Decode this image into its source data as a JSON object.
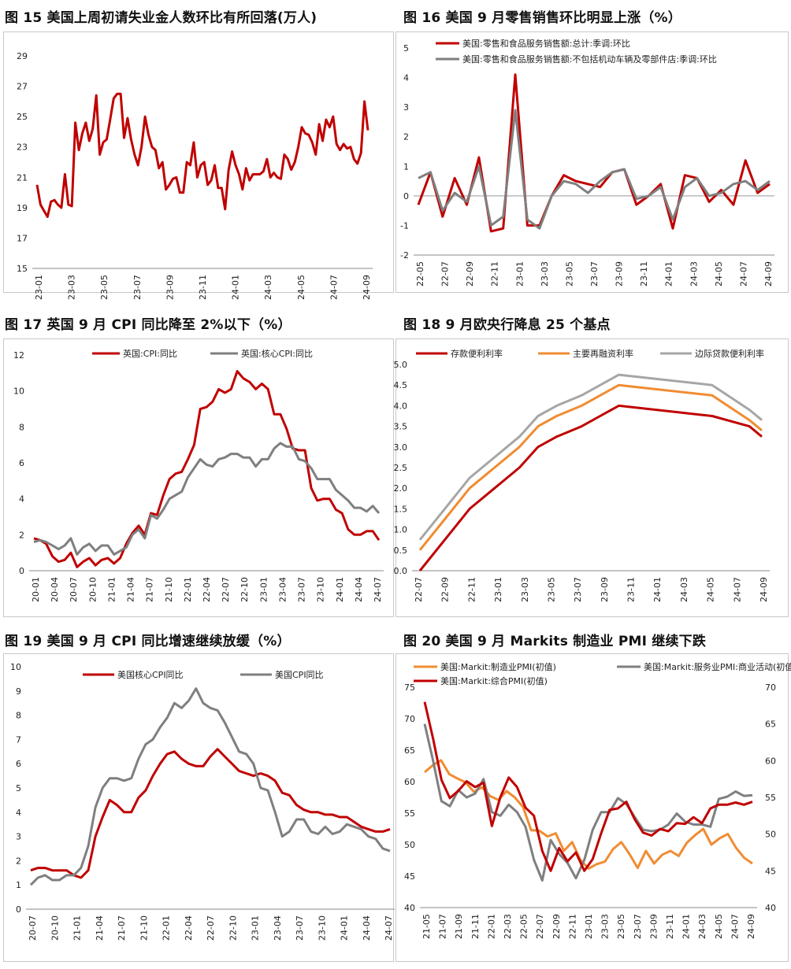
{
  "colors": {
    "red": "#c00000",
    "gray": "#7f7f7f",
    "orange": "#f08c32",
    "lightgray": "#a6a6a6"
  },
  "chart_data": [
    {
      "id": "c15",
      "title": "图 15 美国上周初请失业金人数环比有所回落(万人)",
      "type": "line",
      "ylim": [
        15,
        29
      ],
      "yticks": [
        "15",
        "17",
        "19",
        "21",
        "23",
        "25",
        "27",
        "29"
      ],
      "xticks": [
        "23-01",
        "23-03",
        "23-05",
        "23-07",
        "23-09",
        "23-11",
        "24-01",
        "24-03",
        "24-05",
        "24-07",
        "24-09"
      ],
      "series": [
        {
          "name": "初请失业金人数",
          "color": "#c00000",
          "values": [
            20.5,
            19.2,
            18.8,
            18.4,
            19.4,
            19.5,
            19.2,
            19.0,
            21.2,
            19.2,
            19.1,
            24.6,
            22.8,
            23.9,
            24.6,
            23.4,
            24.2,
            26.4,
            22.5,
            23.3,
            23.5,
            24.8,
            26.2,
            26.5,
            26.5,
            23.6,
            24.9,
            23.5,
            22.5,
            21.8,
            23.0,
            25.0,
            23.8,
            23.0,
            22.8,
            21.6,
            22.0,
            20.2,
            20.5,
            20.9,
            21.0,
            20.0,
            20.0,
            22.0,
            21.8,
            23.3,
            21.0,
            21.8,
            22.0,
            20.5,
            20.8,
            21.8,
            20.3,
            20.3,
            18.9,
            21.5,
            22.7,
            21.8,
            21.2,
            20.2,
            21.6,
            20.8,
            21.2,
            21.2,
            21.2,
            21.4,
            22.2,
            21.0,
            21.3,
            21.0,
            20.9,
            22.5,
            22.2,
            21.5,
            22.0,
            23.0,
            24.3,
            23.9,
            23.8,
            23.3,
            22.5,
            24.5,
            23.4,
            24.8,
            24.3,
            25.0,
            23.2,
            22.8,
            23.2,
            22.9,
            23.0,
            22.2,
            21.9,
            22.6,
            26.0,
            24.1
          ]
        }
      ]
    },
    {
      "id": "c16",
      "title": "图 16 美国 9 月零售销售环比明显上涨（%）",
      "type": "line",
      "ylim": [
        -2,
        5
      ],
      "yticks": [
        "-2",
        "-1",
        "0",
        "1",
        "2",
        "3",
        "4",
        "5"
      ],
      "xticks": [
        "22-05",
        "22-07",
        "22-09",
        "22-11",
        "23-01",
        "23-03",
        "23-05",
        "23-07",
        "23-09",
        "23-11",
        "24-01",
        "24-03",
        "24-05",
        "24-07",
        "24-09"
      ],
      "series": [
        {
          "name": "美国:零售和食品服务销售额:总计:季调:环比",
          "color": "#c00000",
          "values": [
            -0.3,
            0.8,
            -0.7,
            0.6,
            -0.3,
            1.3,
            -1.2,
            -1.1,
            4.1,
            -1.0,
            -1.0,
            0.0,
            0.7,
            0.5,
            0.4,
            0.3,
            0.8,
            0.9,
            -0.3,
            0.0,
            0.4,
            -1.1,
            0.7,
            0.6,
            -0.2,
            0.2,
            -0.3,
            1.2,
            0.1,
            0.4
          ]
        },
        {
          "name": "美国:零售和食品服务销售额:不包括机动车辆及零部件店:季调:环比",
          "color": "#7f7f7f",
          "values": [
            0.6,
            0.8,
            -0.5,
            0.1,
            -0.2,
            1.0,
            -1.0,
            -0.7,
            2.9,
            -0.8,
            -1.1,
            0.0,
            0.5,
            0.4,
            0.1,
            0.5,
            0.8,
            0.9,
            -0.1,
            0.0,
            0.3,
            -0.8,
            0.3,
            0.6,
            0.0,
            0.1,
            0.4,
            0.5,
            0.2,
            0.5
          ]
        }
      ]
    },
    {
      "id": "c17",
      "title": "图 17 英国 9 月 CPI 同比降至 2%以下（%）",
      "type": "line",
      "ylim": [
        0,
        12
      ],
      "yticks": [
        "0",
        "2",
        "4",
        "6",
        "8",
        "10",
        "12"
      ],
      "xticks": [
        "20-01",
        "20-04",
        "20-07",
        "20-10",
        "21-01",
        "21-04",
        "21-07",
        "21-10",
        "22-01",
        "22-04",
        "22-07",
        "22-10",
        "23-01",
        "23-04",
        "23-07",
        "23-10",
        "24-01",
        "24-04",
        "24-07"
      ],
      "series": [
        {
          "name": "英国:CPI:同比",
          "color": "#c00000",
          "values": [
            1.8,
            1.7,
            1.5,
            0.8,
            0.5,
            0.6,
            1.0,
            0.2,
            0.5,
            0.7,
            0.3,
            0.6,
            0.7,
            0.4,
            0.7,
            1.5,
            2.1,
            2.5,
            2.0,
            3.2,
            3.1,
            4.2,
            5.1,
            5.4,
            5.5,
            6.2,
            7.0,
            9.0,
            9.1,
            9.4,
            10.1,
            9.9,
            10.1,
            11.1,
            10.7,
            10.5,
            10.1,
            10.4,
            10.1,
            8.7,
            8.7,
            7.9,
            6.8,
            6.7,
            6.7,
            4.6,
            3.9,
            4.0,
            4.0,
            3.4,
            3.2,
            2.3,
            2.0,
            2.0,
            2.2,
            2.2,
            1.7
          ]
        },
        {
          "name": "英国:核心CPI:同比",
          "color": "#7f7f7f",
          "values": [
            1.6,
            1.7,
            1.6,
            1.4,
            1.2,
            1.4,
            1.8,
            0.9,
            1.3,
            1.5,
            1.1,
            1.4,
            1.4,
            0.9,
            1.1,
            1.3,
            2.0,
            2.3,
            1.8,
            3.1,
            2.9,
            3.4,
            4.0,
            4.2,
            4.4,
            5.2,
            5.7,
            6.2,
            5.9,
            5.8,
            6.2,
            6.3,
            6.5,
            6.5,
            6.3,
            6.3,
            5.8,
            6.2,
            6.2,
            6.8,
            7.1,
            6.9,
            6.9,
            6.2,
            6.1,
            5.7,
            5.1,
            5.1,
            5.1,
            4.5,
            4.2,
            3.9,
            3.5,
            3.5,
            3.3,
            3.6,
            3.2
          ]
        }
      ]
    },
    {
      "id": "c18",
      "title": "图 18 9 月欧央行降息 25 个基点",
      "type": "line",
      "ylim": [
        0,
        5
      ],
      "yticks": [
        "0.0",
        "0.5",
        "1.0",
        "1.5",
        "2.0",
        "2.5",
        "3.0",
        "3.5",
        "4.0",
        "4.5",
        "5.0"
      ],
      "xticks": [
        "22-07",
        "22-09",
        "22-11",
        "23-01",
        "23-03",
        "23-05",
        "23-07",
        "23-09",
        "23-11",
        "24-01",
        "24-03",
        "24-05",
        "24-07",
        "24-09"
      ],
      "series": [
        {
          "name": "存款便利利率",
          "color": "#c00000",
          "values": [
            0.0,
            0.75,
            1.5,
            2.0,
            2.5,
            3.0,
            3.25,
            3.5,
            3.75,
            4.0,
            3.75,
            3.5,
            3.25
          ]
        },
        {
          "name": "主要再融资利率",
          "color": "#f08c32",
          "values": [
            0.5,
            1.25,
            2.0,
            2.5,
            3.0,
            3.5,
            3.75,
            4.0,
            4.25,
            4.5,
            4.25,
            3.65,
            3.4
          ]
        },
        {
          "name": "边际贷款便利利率",
          "color": "#a6a6a6",
          "values": [
            0.75,
            1.5,
            2.25,
            2.75,
            3.25,
            3.75,
            4.0,
            4.25,
            4.5,
            4.75,
            4.5,
            3.9,
            3.65
          ]
        }
      ],
      "x_index": [
        0,
        2,
        4,
        6,
        8,
        9.5,
        11,
        13,
        14.5,
        16,
        23.5,
        26.5,
        27.5
      ]
    },
    {
      "id": "c19",
      "title": "图 19 美国 9 月 CPI 同比增速继续放缓（%）",
      "type": "line",
      "ylim": [
        0,
        10
      ],
      "yticks": [
        "0",
        "1",
        "2",
        "3",
        "4",
        "5",
        "6",
        "7",
        "8",
        "9",
        "10"
      ],
      "xticks": [
        "20-07",
        "20-10",
        "21-01",
        "21-04",
        "21-07",
        "21-10",
        "22-01",
        "22-04",
        "22-07",
        "22-10",
        "23-01",
        "23-04",
        "23-07",
        "23-10",
        "24-01",
        "24-04",
        "24-07"
      ],
      "series": [
        {
          "name": "美国核心CPI同比",
          "color": "#c00000",
          "values": [
            1.6,
            1.7,
            1.7,
            1.6,
            1.6,
            1.6,
            1.4,
            1.3,
            1.6,
            3.0,
            3.8,
            4.5,
            4.3,
            4.0,
            4.0,
            4.6,
            4.9,
            5.5,
            6.0,
            6.4,
            6.5,
            6.2,
            6.0,
            5.9,
            5.9,
            6.3,
            6.6,
            6.3,
            6.0,
            5.7,
            5.6,
            5.5,
            5.6,
            5.5,
            5.3,
            4.8,
            4.7,
            4.3,
            4.1,
            4.0,
            4.0,
            3.9,
            3.9,
            3.8,
            3.8,
            3.6,
            3.4,
            3.3,
            3.2,
            3.2,
            3.3
          ]
        },
        {
          "name": "美国CPI同比",
          "color": "#7f7f7f",
          "values": [
            1.0,
            1.3,
            1.4,
            1.2,
            1.2,
            1.4,
            1.4,
            1.7,
            2.6,
            4.2,
            5.0,
            5.4,
            5.4,
            5.3,
            5.4,
            6.2,
            6.8,
            7.0,
            7.5,
            7.9,
            8.5,
            8.3,
            8.6,
            9.1,
            8.5,
            8.3,
            8.2,
            7.7,
            7.1,
            6.5,
            6.4,
            6.0,
            5.0,
            4.9,
            4.0,
            3.0,
            3.2,
            3.7,
            3.7,
            3.2,
            3.1,
            3.4,
            3.1,
            3.2,
            3.5,
            3.4,
            3.3,
            3.0,
            2.9,
            2.5,
            2.4
          ]
        }
      ]
    },
    {
      "id": "c20",
      "title": "图 20 美国 9 月 Markits 制造业 PMI 继续下跌",
      "type": "line",
      "ylim": [
        40,
        75
      ],
      "yticks": [
        "40",
        "45",
        "50",
        "55",
        "60",
        "65",
        "70",
        "75"
      ],
      "y2lim": [
        40,
        70
      ],
      "y2ticks": [
        "40",
        "45",
        "50",
        "55",
        "60",
        "65",
        "70"
      ],
      "xticks": [
        "21-05",
        "21-07",
        "21-09",
        "21-11",
        "22-01",
        "22-03",
        "22-05",
        "22-07",
        "22-09",
        "22-11",
        "23-01",
        "23-03",
        "23-05",
        "23-07",
        "23-09",
        "23-11",
        "24-01",
        "24-03",
        "24-05",
        "24-07",
        "24-09"
      ],
      "series": [
        {
          "name": "美国:Markit:制造业PMI(初值)",
          "color": "#f08c32",
          "axis": "left",
          "values": [
            61.5,
            62.6,
            63.4,
            61.2,
            60.5,
            59.9,
            58.4,
            59.1,
            57.7,
            57.1,
            58.5,
            57.5,
            56.0,
            52.3,
            52.2,
            51.3,
            51.8,
            49.0,
            50.4,
            47.6,
            46.2,
            46.9,
            47.3,
            49.3,
            50.4,
            48.5,
            46.3,
            49.0,
            47.0,
            48.4,
            49.0,
            48.2,
            50.3,
            51.5,
            52.5,
            50.0,
            51.0,
            51.7,
            49.5,
            47.9,
            47.0
          ]
        },
        {
          "name": "美国:Markit:服务业PMI:商业活动(初值)",
          "color": "#7f7f7f",
          "axis": "right",
          "values": [
            65.0,
            60.0,
            54.5,
            53.8,
            56.0,
            55.0,
            55.5,
            57.5,
            53.0,
            52.5,
            54.0,
            53.0,
            51.0,
            46.5,
            43.7,
            49.2,
            47.3,
            46.1,
            44.0,
            46.5,
            50.6,
            53.0,
            53.0,
            54.9,
            54.1,
            52.3,
            50.6,
            50.4,
            50.6,
            51.3,
            52.8,
            51.7,
            51.3,
            51.3,
            51.0,
            54.8,
            55.1,
            55.8,
            55.2,
            55.3
          ]
        },
        {
          "name": "美国:Markit:综合PMI(初值)",
          "color": "#c00000",
          "axis": "right",
          "values": [
            68.0,
            63.0,
            57.4,
            54.9,
            55.9,
            57.2,
            56.4,
            57.0,
            51.1,
            55.0,
            57.7,
            56.4,
            53.6,
            52.5,
            47.7,
            45.0,
            48.1,
            46.3,
            47.5,
            45.0,
            46.6,
            50.1,
            53.3,
            53.5,
            54.4,
            52.0,
            50.2,
            49.8,
            50.7,
            50.4,
            51.5,
            51.4,
            52.3,
            51.5,
            53.5,
            54.0,
            54.0,
            54.3,
            54.0,
            54.4
          ]
        }
      ]
    }
  ]
}
